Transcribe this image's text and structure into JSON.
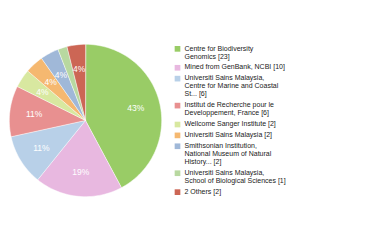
{
  "chart_data": {
    "type": "pie",
    "categories": [
      "Centre for Biodiversity\nGenomics [23]",
      "Mined from GenBank, NCBI [10]",
      "Universiti Sains Malaysia,\nCentre for Marine and Coastal\nSt... [6]",
      "Institut de Recherche pour le\nDeveloppement, France [6]",
      "Wellcome Sanger Institute [2]",
      "Universiti Sains Malaysia [2]",
      "Smithsonian Institution,\nNational Museum of Natural\nHistory... [2]",
      "Universiti Sains Malaysia,\nSchool of Biological Sciences [1]",
      "2 Others [2]"
    ],
    "values": [
      43,
      19,
      11,
      11,
      4,
      4,
      4,
      2,
      4
    ],
    "value_labels": [
      "43%",
      "19%",
      "11%",
      "11%",
      "4%",
      "4%",
      "4%",
      null,
      "4%"
    ],
    "colors": [
      "#99cc66",
      "#e8b8e0",
      "#b8d0e8",
      "#e89090",
      "#d8e8a0",
      "#f5b870",
      "#a0b8d8",
      "#b8d8a0",
      "#cc6655"
    ],
    "data_labels": true,
    "legend": "right"
  }
}
